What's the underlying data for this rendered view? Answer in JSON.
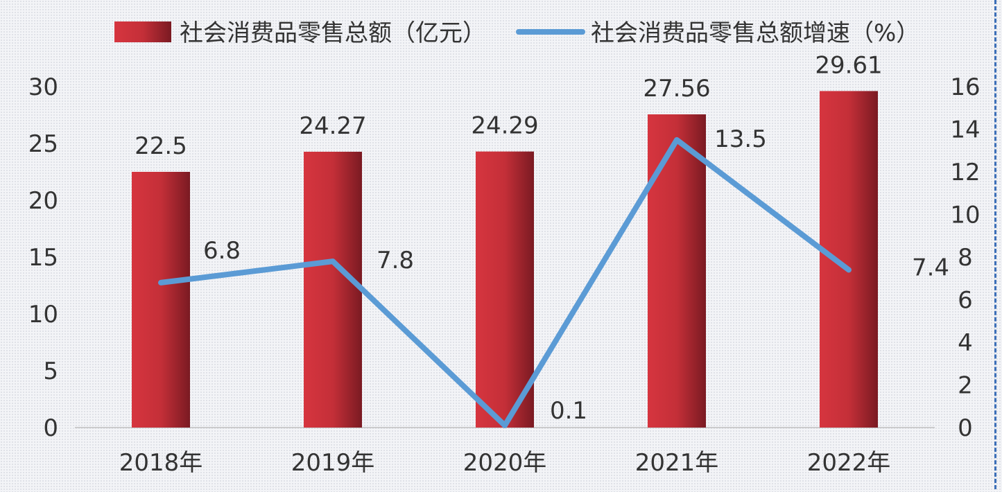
{
  "chart_data": {
    "type": "bar",
    "categories": [
      "2018年",
      "2019年",
      "2020年",
      "2021年",
      "2022年"
    ],
    "series": [
      {
        "name": "社会消费品零售总额（亿元）",
        "type": "bar",
        "axis": "left",
        "values": [
          22.5,
          24.27,
          24.29,
          27.56,
          29.61
        ],
        "labels": [
          "22.5",
          "24.27",
          "24.29",
          "27.56",
          "29.61"
        ],
        "color": "#c9313a"
      },
      {
        "name": "社会消费品零售总额增速（%）",
        "type": "line",
        "axis": "right",
        "values": [
          6.8,
          7.8,
          0.1,
          13.5,
          7.4
        ],
        "labels": [
          "6.8",
          "7.8",
          "0.1",
          "13.5",
          "7.4"
        ],
        "color": "#5b9bd5"
      }
    ],
    "y_left": {
      "ylim": [
        0,
        30
      ],
      "ticks": [
        "0",
        "5",
        "10",
        "15",
        "20",
        "25",
        "30"
      ]
    },
    "y_right": {
      "ylim": [
        0,
        16
      ],
      "ticks": [
        "0",
        "2",
        "4",
        "6",
        "8",
        "10",
        "12",
        "14",
        "16"
      ]
    },
    "grid": false,
    "legend": "top"
  }
}
